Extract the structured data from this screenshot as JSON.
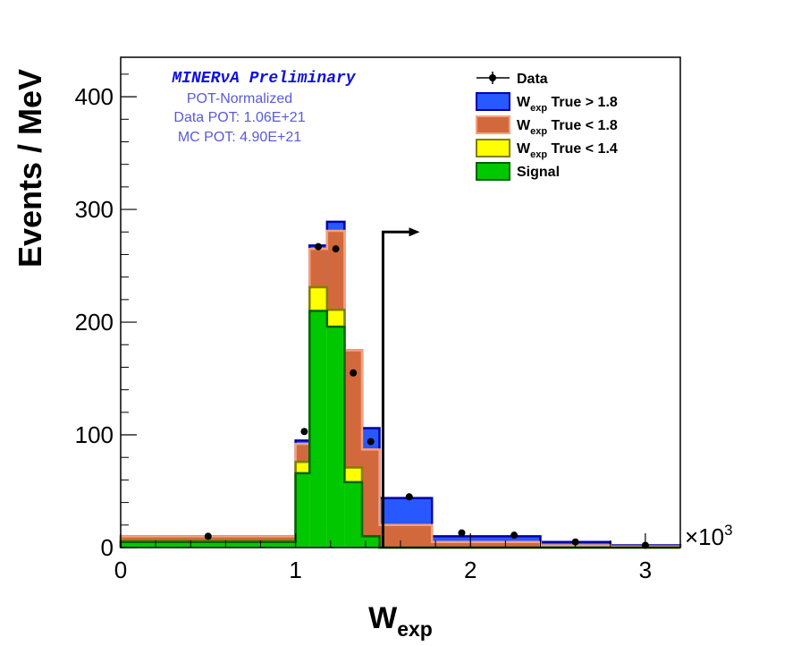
{
  "chart_data": {
    "type": "bar",
    "stacked_histogram": true,
    "title": "",
    "xlabel": "W",
    "xlabel_sub": "exp",
    "ylabel": "Events / MeV",
    "x_multiplier": "×10",
    "x_multiplier_exp": "3",
    "xlim": [
      0,
      3.2
    ],
    "ylim": [
      0,
      435
    ],
    "x_ticks": [
      0,
      1,
      2,
      3
    ],
    "y_ticks": [
      0,
      100,
      200,
      300,
      400
    ],
    "bin_edges": [
      0,
      1.0,
      1.08,
      1.18,
      1.28,
      1.38,
      1.48,
      1.78,
      2.4,
      2.8,
      3.2
    ],
    "series": [
      {
        "name": "Signal",
        "color": "#00c800",
        "edge": "#006400",
        "values": [
          5,
          66,
          210,
          196,
          58,
          10,
          0,
          0,
          0,
          0
        ]
      },
      {
        "name_prefix": "W",
        "name_sub": "exp",
        "name_suffix": " True < 1.4",
        "color": "#ffff00",
        "edge": "#808000",
        "values": [
          1,
          10,
          21,
          15,
          13,
          0,
          0,
          0,
          0,
          0
        ]
      },
      {
        "name_prefix": "W",
        "name_sub": "exp",
        "name_suffix": " True < 1.8",
        "color": "#d2693c",
        "edge": "#f5a080",
        "values": [
          4,
          16,
          34,
          70,
          104,
          77,
          20,
          5,
          2,
          1
        ]
      },
      {
        "name_prefix": "W",
        "name_sub": "exp",
        "name_suffix": " True > 1.8",
        "color": "#2858ff",
        "edge": "#0000aa",
        "values": [
          0,
          3,
          3,
          8,
          0,
          19,
          24,
          5,
          3,
          1
        ]
      }
    ],
    "data_points": {
      "name": "Data",
      "x": [
        0.5,
        1.05,
        1.13,
        1.23,
        1.33,
        1.43,
        1.65,
        1.95,
        2.25,
        2.6,
        3.0
      ],
      "y": [
        10,
        103,
        267,
        265,
        155,
        94,
        45,
        13,
        11,
        5,
        2
      ]
    },
    "cut_arrow": {
      "x": 1.5,
      "y": 280,
      "x_end": 1.71
    },
    "legend_position": "top-right"
  },
  "info": {
    "preliminary": "MINERνA Preliminary",
    "pot_normalized": "POT-Normalized",
    "data_pot": "Data POT: 1.06E+21",
    "mc_pot": "MC POT: 4.90E+21"
  },
  "legend": {
    "data_label": "Data",
    "entries": [
      {
        "prefix": "W",
        "sub": "exp",
        "suffix": " True > 1.8",
        "color": "#2858ff",
        "edge": "#0000aa"
      },
      {
        "prefix": "W",
        "sub": "exp",
        "suffix": " True < 1.8",
        "color": "#d2693c",
        "edge": "#f5a080"
      },
      {
        "prefix": "W",
        "sub": "exp",
        "suffix": " True < 1.4",
        "color": "#ffff00",
        "edge": "#808000"
      },
      {
        "prefix": "Signal",
        "sub": "",
        "suffix": "",
        "color": "#00c800",
        "edge": "#006400"
      }
    ]
  }
}
